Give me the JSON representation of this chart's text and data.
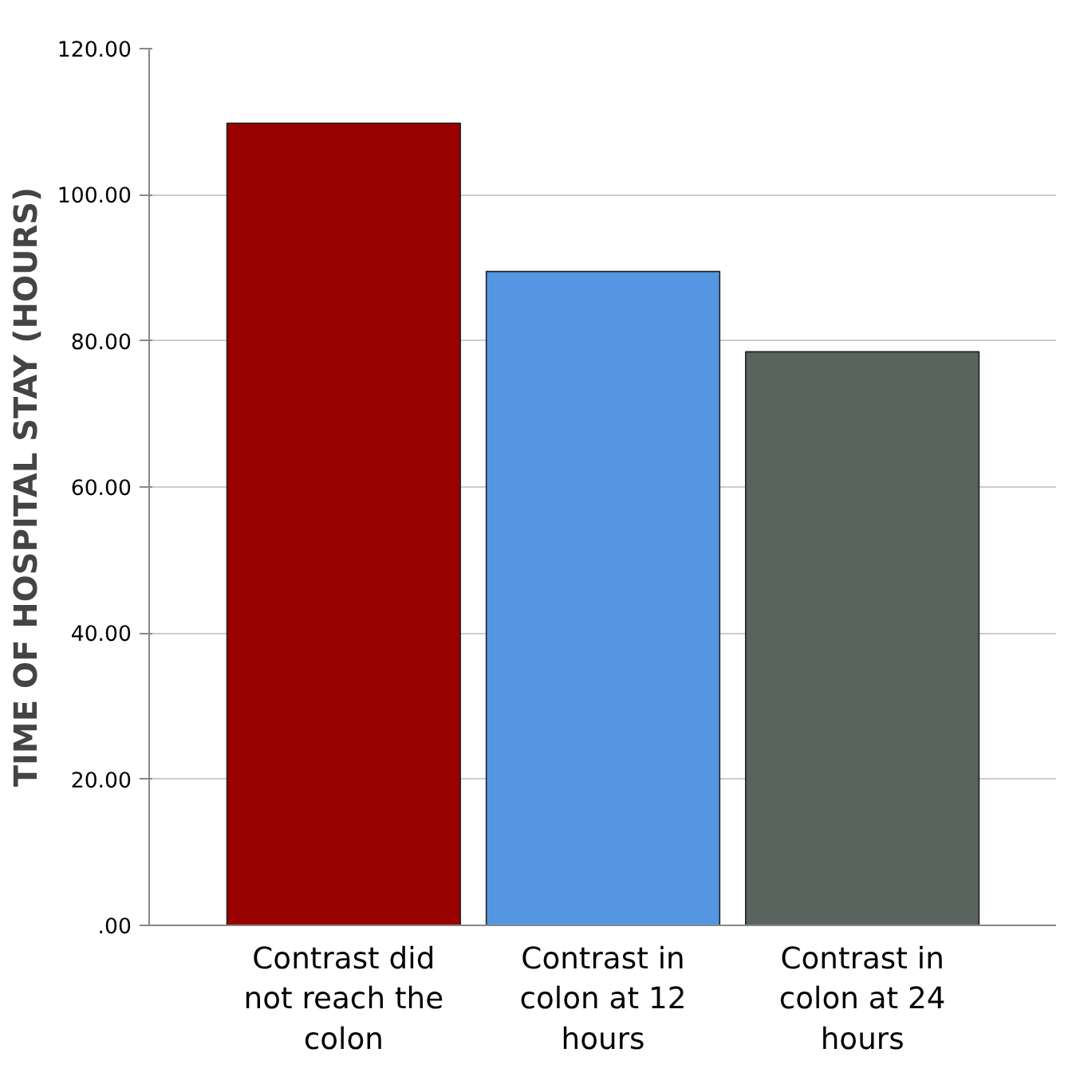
{
  "chart_data": {
    "type": "bar",
    "ylabel": "TIME OF HOSPITAL STAY (HOURS)",
    "categories": [
      "Contrast did not reach the colon",
      "Contrast in colon at 12 hours",
      "Contrast in colon at 24 hours"
    ],
    "values": [
      109.8,
      89.5,
      78.5
    ],
    "colors": [
      "#990000",
      "#5596e3",
      "#5a645e"
    ],
    "ylim": [
      0,
      120
    ],
    "yticks": [
      {
        "value": 0,
        "label": ".00"
      },
      {
        "value": 20,
        "label": "20.00"
      },
      {
        "value": 40,
        "label": "40.00"
      },
      {
        "value": 60,
        "label": "60.00"
      },
      {
        "value": 80,
        "label": "80.00"
      },
      {
        "value": 100,
        "label": "100.00"
      },
      {
        "value": 120,
        "label": "120.00"
      }
    ],
    "grid": "y"
  }
}
